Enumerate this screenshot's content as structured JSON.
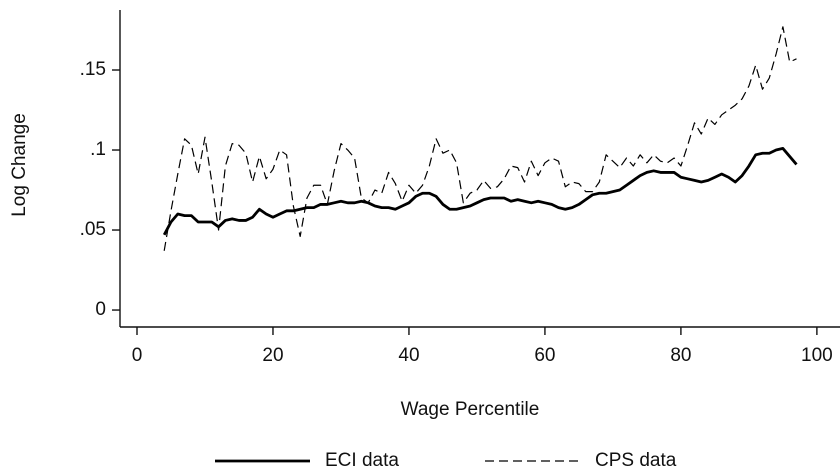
{
  "chart_data": {
    "type": "line",
    "x_label": "Wage Percentile",
    "y_label": "Log Change",
    "x": [
      4,
      5,
      6,
      7,
      8,
      9,
      10,
      11,
      12,
      13,
      14,
      15,
      16,
      17,
      18,
      19,
      20,
      21,
      22,
      23,
      24,
      25,
      26,
      27,
      28,
      29,
      30,
      31,
      32,
      33,
      34,
      35,
      36,
      37,
      38,
      39,
      40,
      41,
      42,
      43,
      44,
      45,
      46,
      47,
      48,
      49,
      50,
      51,
      52,
      53,
      54,
      55,
      56,
      57,
      58,
      59,
      60,
      61,
      62,
      63,
      64,
      65,
      66,
      67,
      68,
      69,
      70,
      71,
      72,
      73,
      74,
      75,
      76,
      77,
      78,
      79,
      80,
      81,
      82,
      83,
      84,
      85,
      86,
      87,
      88,
      89,
      90,
      91,
      92,
      93,
      94,
      95,
      96,
      97
    ],
    "series": [
      {
        "name": "ECI data",
        "color": "#000000",
        "dash": "solid",
        "values": [
          0.047,
          0.055,
          0.06,
          0.059,
          0.059,
          0.055,
          0.055,
          0.055,
          0.052,
          0.056,
          0.057,
          0.056,
          0.056,
          0.058,
          0.063,
          0.06,
          0.058,
          0.06,
          0.062,
          0.062,
          0.063,
          0.064,
          0.064,
          0.066,
          0.066,
          0.067,
          0.068,
          0.067,
          0.067,
          0.068,
          0.067,
          0.065,
          0.064,
          0.064,
          0.063,
          0.065,
          0.067,
          0.071,
          0.073,
          0.073,
          0.071,
          0.066,
          0.063,
          0.063,
          0.064,
          0.065,
          0.067,
          0.069,
          0.07,
          0.07,
          0.07,
          0.068,
          0.069,
          0.068,
          0.067,
          0.068,
          0.067,
          0.066,
          0.064,
          0.063,
          0.064,
          0.066,
          0.069,
          0.072,
          0.073,
          0.073,
          0.074,
          0.075,
          0.078,
          0.081,
          0.084,
          0.086,
          0.087,
          0.086,
          0.086,
          0.086,
          0.083,
          0.082,
          0.081,
          0.08,
          0.081,
          0.083,
          0.085,
          0.083,
          0.08,
          0.084,
          0.09,
          0.097,
          0.098,
          0.098,
          0.1,
          0.101,
          0.096,
          0.091
        ]
      },
      {
        "name": "CPS data",
        "color": "#000000",
        "dash": "dashed",
        "values": [
          0.037,
          0.062,
          0.085,
          0.107,
          0.103,
          0.085,
          0.108,
          0.08,
          0.05,
          0.09,
          0.104,
          0.103,
          0.098,
          0.08,
          0.096,
          0.082,
          0.088,
          0.1,
          0.097,
          0.065,
          0.046,
          0.07,
          0.078,
          0.078,
          0.066,
          0.087,
          0.104,
          0.1,
          0.095,
          0.07,
          0.067,
          0.075,
          0.073,
          0.086,
          0.079,
          0.068,
          0.078,
          0.073,
          0.078,
          0.09,
          0.107,
          0.098,
          0.1,
          0.092,
          0.067,
          0.073,
          0.075,
          0.081,
          0.076,
          0.077,
          0.082,
          0.09,
          0.089,
          0.08,
          0.093,
          0.084,
          0.092,
          0.095,
          0.093,
          0.077,
          0.08,
          0.079,
          0.074,
          0.074,
          0.08,
          0.097,
          0.093,
          0.089,
          0.095,
          0.09,
          0.097,
          0.092,
          0.097,
          0.093,
          0.092,
          0.095,
          0.09,
          0.103,
          0.117,
          0.11,
          0.12,
          0.116,
          0.122,
          0.125,
          0.128,
          0.132,
          0.14,
          0.153,
          0.138,
          0.145,
          0.16,
          0.177,
          0.155,
          0.157
        ]
      }
    ],
    "xlim": [
      -2.5,
      103.4
    ],
    "xticks": [
      0,
      20,
      40,
      60,
      80,
      100
    ],
    "ylim": [
      -0.0106,
      0.1875
    ],
    "yticks": [
      0,
      {
        "value": 0.05,
        "label": ".05"
      },
      {
        "value": 0.1,
        "label": ".1"
      },
      {
        "value": 0.15,
        "label": ".15"
      }
    ],
    "grid": false,
    "legend_position": "bottom"
  }
}
